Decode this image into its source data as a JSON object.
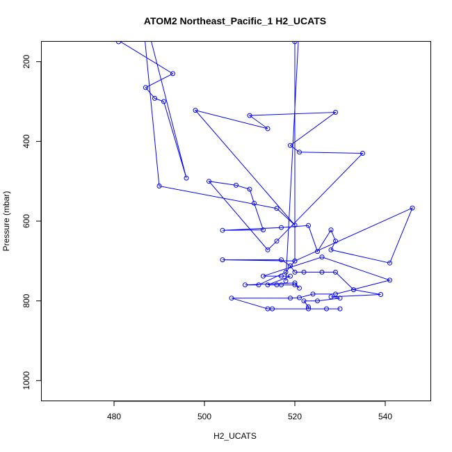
{
  "chart_data": {
    "type": "line",
    "title": "ATOM2 Northeast_Pacific_1 H2_UCATS",
    "xlabel": "H2_UCATS",
    "ylabel": "Pressure (mbar)",
    "xlim": [
      464,
      550
    ],
    "ylim": [
      1050,
      150
    ],
    "y_reversed": true,
    "x_ticks": [
      480,
      500,
      520,
      540
    ],
    "y_ticks": [
      200,
      400,
      600,
      800,
      1000
    ],
    "grid": false,
    "legend": "none",
    "colors": {
      "series": "#0000ff",
      "axes": "#000000"
    },
    "marker": "open-circle",
    "series": [
      {
        "points": [
          [
            477,
            100
          ],
          [
            481,
            150
          ],
          [
            480,
            140
          ],
          [
            493,
            230
          ],
          [
            487,
            265
          ],
          [
            489,
            292
          ],
          [
            491,
            300
          ],
          [
            496,
            492
          ],
          [
            486,
            50
          ],
          [
            490,
            512
          ],
          [
            516,
            568
          ],
          [
            520,
            610
          ],
          [
            498,
            322
          ],
          [
            514,
            368
          ],
          [
            510,
            335
          ],
          [
            529,
            327
          ],
          [
            519,
            410
          ],
          [
            521,
            427
          ],
          [
            535,
            430
          ],
          [
            516,
            650
          ],
          [
            514,
            672
          ],
          [
            501,
            500
          ],
          [
            507,
            510
          ],
          [
            510,
            520
          ],
          [
            511,
            555
          ],
          [
            513,
            622
          ],
          [
            504,
            623
          ],
          [
            517,
            616
          ],
          [
            523,
            611
          ],
          [
            525,
            676
          ],
          [
            528,
            622
          ],
          [
            529,
            650
          ],
          [
            528,
            672
          ],
          [
            541,
            705
          ],
          [
            546,
            567
          ],
          [
            520,
            700
          ],
          [
            504,
            697
          ],
          [
            517,
            697
          ],
          [
            519,
            712
          ],
          [
            520,
            728
          ],
          [
            522,
            728
          ],
          [
            526,
            728
          ],
          [
            529,
            728
          ],
          [
            533,
            772
          ],
          [
            539,
            784
          ],
          [
            528,
            790
          ],
          [
            530,
            793
          ],
          [
            525,
            800
          ],
          [
            522,
            800
          ],
          [
            523,
            815
          ],
          [
            523,
            820
          ],
          [
            527,
            820
          ],
          [
            530,
            820
          ],
          [
            515,
            820
          ],
          [
            514,
            820
          ],
          [
            506,
            793
          ],
          [
            519,
            793
          ],
          [
            521,
            792
          ],
          [
            524,
            783
          ],
          [
            529,
            783
          ],
          [
            541,
            748
          ],
          [
            526,
            690
          ],
          [
            513,
            738
          ],
          [
            517,
            738
          ],
          [
            519,
            738
          ],
          [
            514,
            760
          ],
          [
            516,
            760
          ],
          [
            517,
            760
          ],
          [
            520,
            760
          ],
          [
            521,
            768
          ],
          [
            520,
            755
          ],
          [
            509,
            760
          ],
          [
            512,
            760
          ],
          [
            518,
            728
          ],
          [
            520,
            700
          ],
          [
            520,
            150
          ],
          [
            521,
            100
          ],
          [
            518,
            750
          ]
        ]
      }
    ]
  }
}
